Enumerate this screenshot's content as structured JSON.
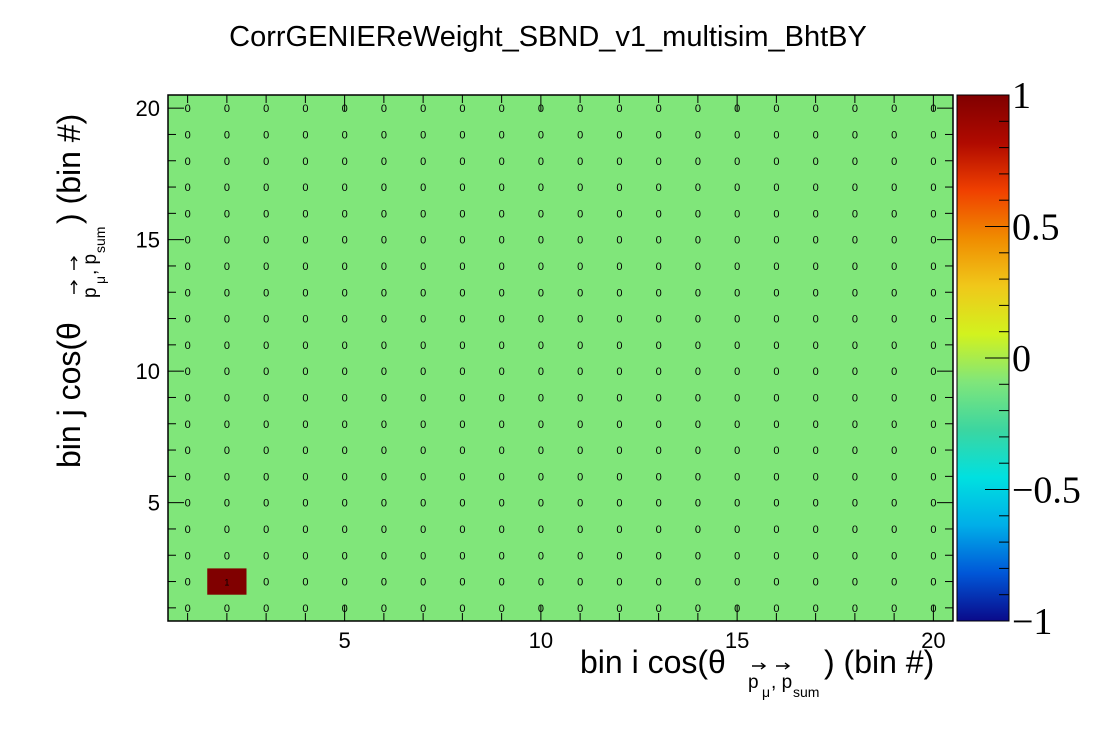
{
  "chart_data": {
    "type": "heatmap",
    "title": "CorrGENIEReWeight_SBND_v1_multisim_BhtBY",
    "xlabel": {
      "prefix": "bin i cos(θ",
      "sub_p1": "p",
      "sub_mu": "μ",
      "sub_comma": ",",
      "sub_p2": "p",
      "sub_sum": "sum",
      "suffix": ") (bin #)"
    },
    "ylabel": {
      "prefix": "bin j cos(θ",
      "sub_p1": "p",
      "sub_mu": "μ",
      "sub_comma": ",",
      "sub_p2": "p",
      "sub_sum": "sum",
      "suffix": ") (bin #)"
    },
    "x_bins": 20,
    "y_bins": 20,
    "xlim": [
      0.5,
      20.5
    ],
    "ylim": [
      0.5,
      20.5
    ],
    "x_tick_labels": [
      "5",
      "10",
      "15",
      "20"
    ],
    "y_tick_labels": [
      "5",
      "10",
      "15",
      "20"
    ],
    "default_value": 0,
    "default_label": "0",
    "nonzero_cells": [
      {
        "i": 2,
        "j": 2,
        "value": 1,
        "label": "1"
      }
    ],
    "zlim": [
      -1,
      1
    ],
    "colorbar_labels": [
      "1",
      "0.5",
      "0",
      "−0.5",
      "−1"
    ],
    "palette": [
      "#0a0a8a",
      "#0057d8",
      "#00aee8",
      "#00e0e0",
      "#3cd6a0",
      "#80e67a",
      "#d2f21e",
      "#f0c81a",
      "#f08c00",
      "#f04000",
      "#b00a00",
      "#800000"
    ],
    "zero_color": "#80e67a",
    "max_color": "#800000"
  }
}
